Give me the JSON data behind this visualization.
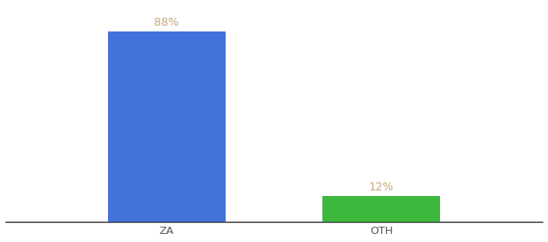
{
  "categories": [
    "ZA",
    "OTH"
  ],
  "values": [
    88,
    12
  ],
  "bar_colors": [
    "#4472db",
    "#3db83d"
  ],
  "label_colors": [
    "#c8a87a",
    "#c8a87a"
  ],
  "label_format": [
    "88%",
    "12%"
  ],
  "bar_positions": [
    0.3,
    0.7
  ],
  "bar_width": 0.22,
  "xlim": [
    0.0,
    1.0
  ],
  "ylim": [
    0,
    100
  ],
  "background_color": "#ffffff",
  "label_fontsize": 10,
  "tick_fontsize": 9.5,
  "spine_color": "#222222"
}
